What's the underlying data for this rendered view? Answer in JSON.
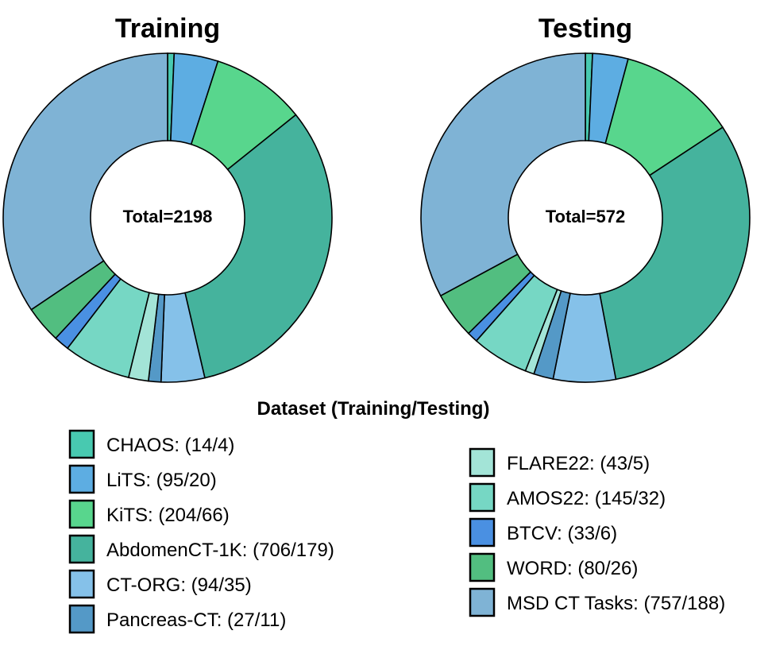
{
  "chart_data": {
    "type": "donut",
    "legend_title": "Dataset (Training/Testing)",
    "categories": [
      "CHAOS",
      "LiTS",
      "KiTS",
      "AbdomenCT-1K",
      "CT-ORG",
      "Pancreas-CT",
      "FLARE22",
      "AMOS22",
      "BTCV",
      "WORD",
      "MSD CT Tasks"
    ],
    "legend_labels": [
      "CHAOS: (14/4)",
      "LiTS: (95/20)",
      "KiTS: (204/66)",
      "AbdomenCT-1K: (706/179)",
      "CT-ORG: (94/35)",
      "Pancreas-CT: (27/11)",
      "FLARE22: (43/5)",
      "AMOS22: (145/32)",
      "BTCV: (33/6)",
      "WORD: (80/26)",
      "MSD CT Tasks: (757/188)"
    ],
    "colors": [
      "#48c9b0",
      "#5dade2",
      "#58d68d",
      "#45b39d",
      "#85c1e9",
      "#5499c7",
      "#a3e4d7",
      "#76d7c4",
      "#4a90e2",
      "#52be80",
      "#7fb3d5"
    ],
    "series": [
      {
        "name": "Training",
        "title": "Training",
        "total_label": "Total=2198",
        "values": [
          14,
          95,
          204,
          706,
          94,
          27,
          43,
          145,
          33,
          80,
          757
        ]
      },
      {
        "name": "Testing",
        "title": "Testing",
        "total_label": "Total=572",
        "values": [
          4,
          20,
          66,
          179,
          35,
          11,
          5,
          32,
          6,
          26,
          188
        ]
      }
    ]
  }
}
